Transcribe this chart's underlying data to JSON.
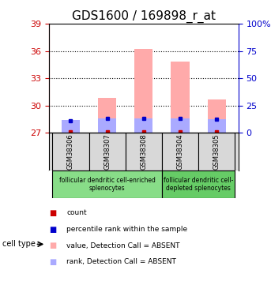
{
  "title": "GDS1600 / 169898_r_at",
  "samples": [
    "GSM38306",
    "GSM38307",
    "GSM38308",
    "GSM38304",
    "GSM38305"
  ],
  "group1": [
    "GSM38306",
    "GSM38307",
    "GSM38308"
  ],
  "group2": [
    "GSM38304",
    "GSM38305"
  ],
  "group1_label": "follicular dendritic cell-enriched\nsplenocytes",
  "group2_label": "follicular dendritic cell-\ndepleted splenocytes",
  "ylim_left": [
    27,
    39
  ],
  "ylim_right": [
    0,
    100
  ],
  "yticks_left": [
    27,
    30,
    33,
    36,
    39
  ],
  "yticks_right": [
    0,
    25,
    50,
    75,
    100
  ],
  "ytick_labels_right": [
    "0",
    "25",
    "50",
    "75",
    "100%"
  ],
  "bar_values": [
    27.2,
    30.8,
    36.2,
    34.8,
    30.7
  ],
  "bar_base": 27.0,
  "rank_values": [
    28.4,
    28.55,
    28.55,
    28.55,
    28.5
  ],
  "count_values": [
    27.15,
    27.15,
    27.15,
    27.15,
    27.15
  ],
  "rank_dot_x": [
    0,
    1,
    2,
    3,
    4
  ],
  "count_colors": "#cc0000",
  "rank_colors": "#0000cc",
  "bar_color": "#ffaaaa",
  "rank_bar_color": "#aaaaff",
  "bg_color": "#ffffff",
  "plot_bg": "#ffffff",
  "grid_color": "#000000",
  "title_fontsize": 11,
  "axis_label_fontsize": 8,
  "tick_fontsize": 8,
  "left_axis_color": "#cc0000",
  "right_axis_color": "#0000cc",
  "group1_bg": "#88dd88",
  "group2_bg": "#66cc66"
}
